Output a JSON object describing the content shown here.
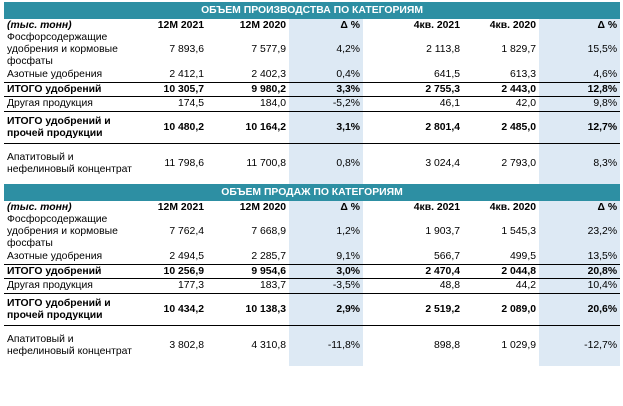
{
  "production": {
    "title": "ОБЪЕМ ПРОИЗВОДСТВА ПО КАТЕГОРИЯМ",
    "header": [
      "(тыс. тонн)",
      "12М 2021",
      "12М 2020",
      "Δ %",
      "4кв. 2021",
      "4кв. 2020",
      "Δ %"
    ],
    "rows": [
      {
        "label": "Фосфорсодержащие удобрения и кормовые фосфаты",
        "values": [
          "7 893,6",
          "7 577,9",
          "4,2%",
          "2 113,8",
          "1 829,7",
          "15,5%"
        ]
      },
      {
        "label": "Азотные удобрения",
        "values": [
          "2 412,1",
          "2 402,3",
          "0,4%",
          "641,5",
          "613,3",
          "4,6%"
        ]
      },
      {
        "label": "ИТОГО удобрений",
        "values": [
          "10 305,7",
          "9 980,2",
          "3,3%",
          "2 755,3",
          "2 443,0",
          "12,8%"
        ]
      },
      {
        "label": "Другая продукция",
        "values": [
          "174,5",
          "184,0",
          "-5,2%",
          "46,1",
          "42,0",
          "9,8%"
        ]
      },
      {
        "label": "ИТОГО удобрений и прочей продукции",
        "values": [
          "10 480,2",
          "10 164,2",
          "3,1%",
          "2 801,4",
          "2 485,0",
          "12,7%"
        ]
      },
      {
        "label": "Апатитовый и нефелиновый концентрат",
        "values": [
          "11 798,6",
          "11 700,8",
          "0,8%",
          "3 024,4",
          "2 793,0",
          "8,3%"
        ]
      }
    ]
  },
  "sales": {
    "title": "ОБЪЕМ ПРОДАЖ ПО КАТЕГОРИЯМ",
    "header": [
      "(тыс. тонн)",
      "12М 2021",
      "12М 2020",
      "Δ %",
      "4кв. 2021",
      "4кв. 2020",
      "Δ %"
    ],
    "rows": [
      {
        "label": "Фосфорсодержащие удобрения и кормовые фосфаты",
        "values": [
          "7 762,4",
          "7 668,9",
          "1,2%",
          "1 903,7",
          "1 545,3",
          "23,2%"
        ]
      },
      {
        "label": "Азотные удобрения",
        "values": [
          "2 494,5",
          "2 285,7",
          "9,1%",
          "566,7",
          "499,5",
          "13,5%"
        ]
      },
      {
        "label": "ИТОГО удобрений",
        "values": [
          "10 256,9",
          "9 954,6",
          "3,0%",
          "2 470,4",
          "2 044,8",
          "20,8%"
        ]
      },
      {
        "label": "Другая продукция",
        "values": [
          "177,3",
          "183,7",
          "-3,5%",
          "48,8",
          "44,2",
          "10,4%"
        ]
      },
      {
        "label": "ИТОГО удобрений и прочей продукции",
        "values": [
          "10 434,2",
          "10 138,3",
          "2,9%",
          "2 519,2",
          "2 089,0",
          "20,6%"
        ]
      },
      {
        "label": "Апатитовый и нефелиновый концентрат",
        "values": [
          "3 802,8",
          "4 310,8",
          "-11,8%",
          "898,8",
          "1 029,9",
          "-12,7%"
        ]
      }
    ]
  }
}
